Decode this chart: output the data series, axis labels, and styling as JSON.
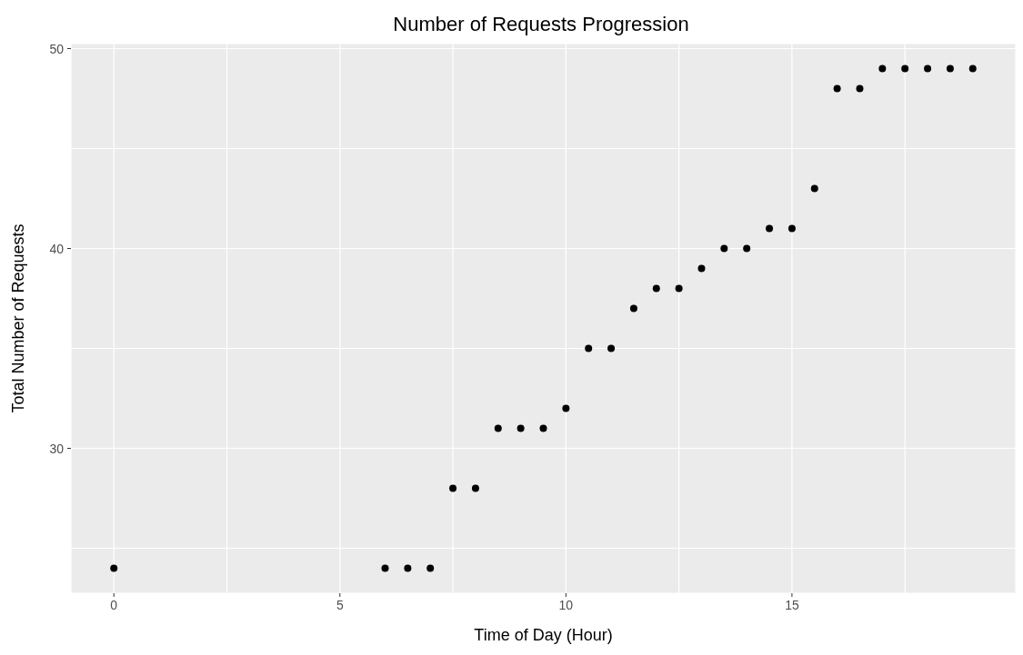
{
  "chart_data": {
    "type": "scatter",
    "title": "Number of Requests Progression",
    "xlabel": "Time of Day (Hour)",
    "ylabel": "Total Number of Requests",
    "x": [
      0,
      6,
      6.5,
      7,
      7.5,
      8,
      8.5,
      9,
      9.5,
      10,
      10.5,
      11,
      11.5,
      12,
      12.5,
      13,
      13.5,
      14,
      14.5,
      15,
      15.5,
      16,
      16.5,
      17,
      17.5,
      18,
      18.5,
      19
    ],
    "values": [
      24,
      24,
      24,
      24,
      28,
      28,
      31,
      31,
      31,
      32,
      35,
      35,
      37,
      38,
      38,
      39,
      40,
      40,
      41,
      41,
      43,
      48,
      48,
      49,
      49,
      49,
      49,
      49
    ],
    "color": "#000000",
    "marker": "circle",
    "xlim": [
      -0.95,
      19.95
    ],
    "xticks": [
      0,
      {
        "value": 2.5,
        "label": null
      },
      5,
      {
        "value": 7.5,
        "label": null
      },
      10,
      {
        "value": 12.5,
        "label": null
      },
      15,
      {
        "value": 17.5,
        "label": null
      }
    ],
    "ylim": [
      22.75,
      50.25
    ],
    "yticks": [
      {
        "value": 25,
        "label": null
      },
      30,
      {
        "value": 35,
        "label": null
      },
      40,
      {
        "value": 45,
        "label": null
      },
      50
    ],
    "grid": true
  }
}
